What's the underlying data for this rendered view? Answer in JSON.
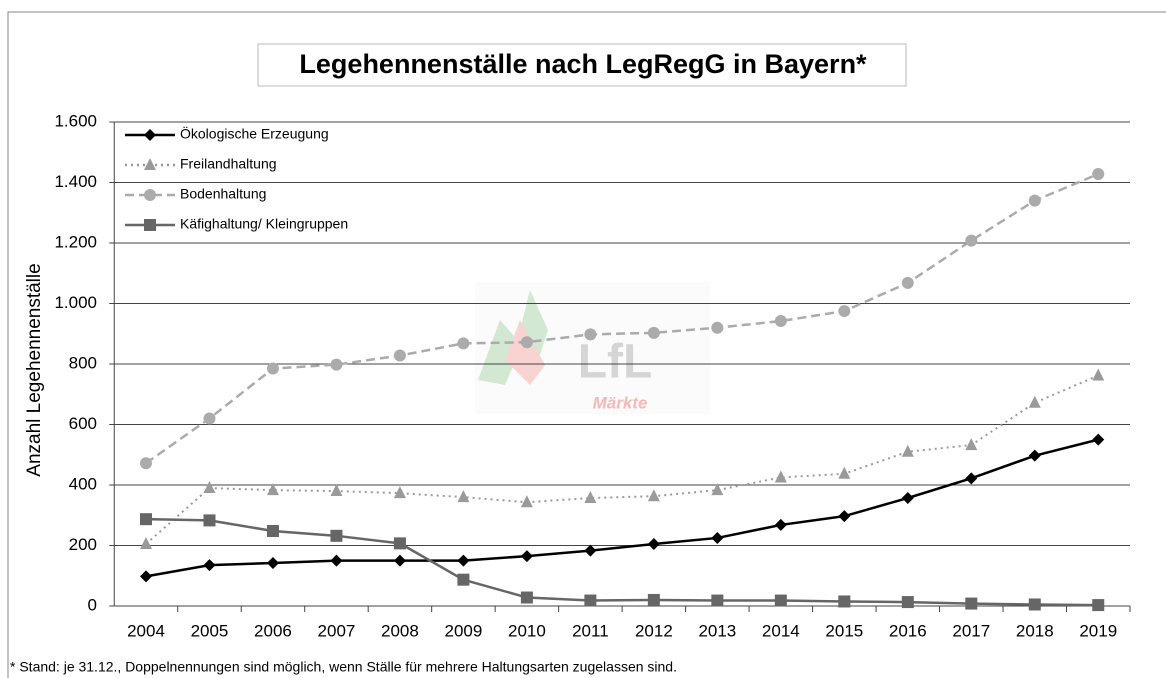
{
  "chart_data": {
    "type": "line",
    "title": "Legehennenställe nach LegRegG in Bayern*",
    "y_label": "Anzahl Legehennenställe",
    "footnote": "* Stand: je 31.12., Doppelnennungen sind möglich, wenn Ställe für mehrere Haltungsarten zugelassen sind.",
    "watermark": [
      "LfL",
      "Märkte"
    ],
    "categories": [
      "2004",
      "2005",
      "2006",
      "2007",
      "2008",
      "2009",
      "2010",
      "2011",
      "2012",
      "2013",
      "2014",
      "2015",
      "2016",
      "2017",
      "2018",
      "2019"
    ],
    "series": [
      {
        "name": "Ökologische Erzeugung",
        "color": "#000000",
        "style": "solid",
        "marker": "diamond",
        "values": [
          98,
          135,
          142,
          150,
          150,
          150,
          165,
          183,
          205,
          225,
          268,
          297,
          357,
          422,
          497,
          550
        ]
      },
      {
        "name": "Freilandhaltung",
        "color": "#9a9a9a",
        "style": "dotted",
        "marker": "triangle",
        "values": [
          205,
          390,
          383,
          380,
          373,
          360,
          343,
          357,
          363,
          383,
          425,
          437,
          510,
          532,
          672,
          762
        ]
      },
      {
        "name": "Bodenhaltung",
        "color": "#ababab",
        "style": "dashed",
        "marker": "circle",
        "values": [
          472,
          620,
          785,
          798,
          828,
          868,
          872,
          898,
          903,
          920,
          942,
          975,
          1068,
          1208,
          1340,
          1428
        ]
      },
      {
        "name": "Käfighaltung/  Kleingruppen",
        "color": "#666666",
        "style": "solid",
        "marker": "square",
        "values": [
          287,
          283,
          248,
          232,
          207,
          87,
          28,
          18,
          20,
          18,
          18,
          15,
          13,
          8,
          5,
          3
        ]
      }
    ],
    "ylim": [
      0,
      1600
    ],
    "yticks": [
      0,
      200,
      400,
      600,
      800,
      {
        "value": 1000,
        "label": "1.000"
      },
      {
        "value": 1200,
        "label": "1.200"
      },
      {
        "value": 1400,
        "label": "1.400"
      },
      {
        "value": 1600,
        "label": "1.600"
      }
    ],
    "grid": true,
    "legend": "top-left"
  }
}
